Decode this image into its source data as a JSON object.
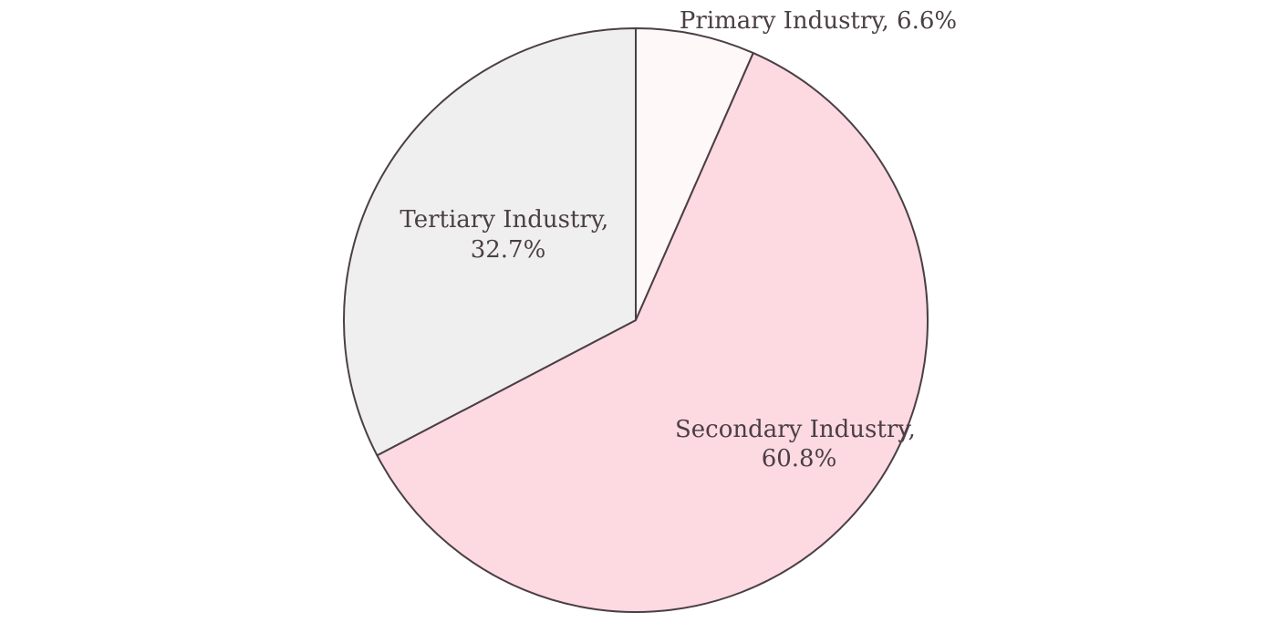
{
  "chart_data": {
    "type": "pie",
    "title": "",
    "slices": [
      {
        "name": "Primary Industry",
        "value": 6.6,
        "line1": "Primary Industry, 6.6%",
        "line2": "",
        "color": "#fff8f8"
      },
      {
        "name": "Secondary Industry",
        "value": 60.8,
        "line1": "Secondary Industry,",
        "line2": "60.8%",
        "color": "#fdd9e1"
      },
      {
        "name": "Tertiary Industry",
        "value": 32.7,
        "line1": "Tertiary Industry,",
        "line2": "32.7%",
        "color": "#efefef"
      }
    ],
    "legend": "none"
  }
}
